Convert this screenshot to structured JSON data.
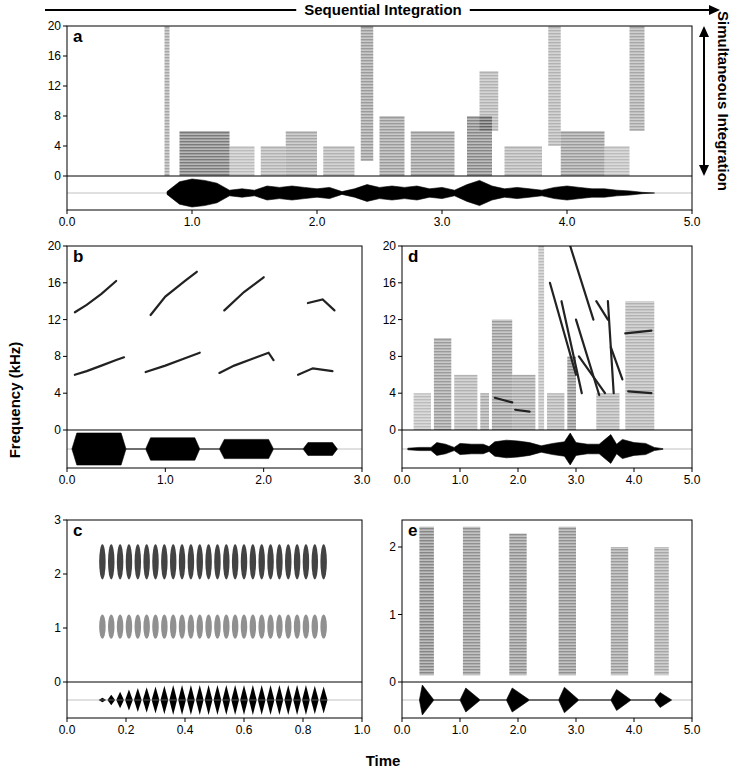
{
  "figure": {
    "sequential": "Sequential Integration",
    "simultaneous": "Simultaneous Integration",
    "y_label": "Frequency (kHz)",
    "x_label": "Time"
  },
  "chart_data": [
    {
      "type": "spectrogram",
      "label": "a",
      "xlim": [
        0,
        5
      ],
      "ylim": [
        0,
        20
      ],
      "xticks": [
        {
          "value": 0,
          "label": "0.0"
        },
        {
          "value": 1,
          "label": "1.0"
        },
        {
          "value": 2,
          "label": "2.0"
        },
        {
          "value": 3,
          "label": "3.0"
        },
        {
          "value": 4,
          "label": "4.0"
        },
        {
          "value": 5,
          "label": "5.0"
        }
      ],
      "yticks": [
        0,
        4,
        8,
        12,
        16,
        20
      ],
      "bands": [
        {
          "start": 0.78,
          "end": 0.82,
          "low": 0,
          "high": 20,
          "level": 0.4
        },
        {
          "start": 0.9,
          "end": 1.3,
          "low": 0,
          "high": 6,
          "level": 0.6
        },
        {
          "start": 1.3,
          "end": 1.5,
          "low": 0,
          "high": 4,
          "level": 0.3
        },
        {
          "start": 1.55,
          "end": 1.75,
          "low": 0,
          "high": 4,
          "level": 0.35
        },
        {
          "start": 1.75,
          "end": 2.0,
          "low": 0,
          "high": 6,
          "level": 0.4
        },
        {
          "start": 2.05,
          "end": 2.3,
          "low": 0,
          "high": 4,
          "level": 0.35
        },
        {
          "start": 2.35,
          "end": 2.45,
          "low": 2,
          "high": 20,
          "level": 0.45
        },
        {
          "start": 2.5,
          "end": 2.7,
          "low": 0,
          "high": 8,
          "level": 0.45
        },
        {
          "start": 2.75,
          "end": 3.1,
          "low": 0,
          "high": 6,
          "level": 0.45
        },
        {
          "start": 3.2,
          "end": 3.4,
          "low": 0,
          "high": 8,
          "level": 0.55
        },
        {
          "start": 3.3,
          "end": 3.45,
          "low": 6,
          "high": 14,
          "level": 0.35
        },
        {
          "start": 3.5,
          "end": 3.8,
          "low": 0,
          "high": 4,
          "level": 0.35
        },
        {
          "start": 3.85,
          "end": 3.95,
          "low": 4,
          "high": 20,
          "level": 0.35
        },
        {
          "start": 3.95,
          "end": 4.3,
          "low": 0,
          "high": 6,
          "level": 0.45
        },
        {
          "start": 4.3,
          "end": 4.5,
          "low": 0,
          "high": 4,
          "level": 0.3
        },
        {
          "start": 4.5,
          "end": 4.62,
          "low": 6,
          "high": 20,
          "level": 0.4
        }
      ],
      "tracks": [],
      "envelope": {
        "x": [
          0.8,
          0.9,
          1.0,
          1.1,
          1.2,
          1.3,
          1.4,
          1.5,
          1.6,
          1.7,
          1.8,
          1.9,
          2.0,
          2.1,
          2.2,
          2.3,
          2.4,
          2.5,
          2.6,
          2.7,
          2.8,
          2.9,
          3.0,
          3.1,
          3.2,
          3.3,
          3.4,
          3.5,
          3.6,
          3.7,
          3.8,
          3.9,
          4.0,
          4.1,
          4.2,
          4.3,
          4.4,
          4.5,
          4.6,
          4.7
        ],
        "values": [
          0.1,
          0.8,
          1.0,
          0.9,
          0.7,
          0.2,
          0.3,
          0.2,
          0.5,
          0.4,
          0.5,
          0.4,
          0.3,
          0.4,
          0.1,
          0.3,
          0.6,
          0.4,
          0.5,
          0.4,
          0.5,
          0.3,
          0.4,
          0.2,
          0.6,
          0.9,
          0.5,
          0.3,
          0.4,
          0.3,
          0.2,
          0.4,
          0.5,
          0.4,
          0.3,
          0.3,
          0.2,
          0.15,
          0.05,
          0
        ]
      },
      "amplitude_lim": [
        0,
        1
      ]
    },
    {
      "type": "spectrogram",
      "label": "b",
      "xlim": [
        0,
        3
      ],
      "ylim": [
        0,
        20
      ],
      "xticks": [
        {
          "value": 0,
          "label": "0.0"
        },
        {
          "value": 1,
          "label": "1.0"
        },
        {
          "value": 2,
          "label": "2.0"
        },
        {
          "value": 3,
          "label": "3.0"
        }
      ],
      "yticks": [
        0,
        4,
        8,
        12,
        16,
        20
      ],
      "bands": [],
      "tracks": [
        {
          "x": [
            0.08,
            0.2,
            0.35,
            0.5,
            0.58
          ],
          "values": [
            6.0,
            6.4,
            7.0,
            7.6,
            7.9
          ]
        },
        {
          "x": [
            0.08,
            0.2,
            0.35,
            0.5
          ],
          "values": [
            12.8,
            13.6,
            14.8,
            16.2
          ]
        },
        {
          "x": [
            0.8,
            1.0,
            1.2,
            1.35
          ],
          "values": [
            6.3,
            7.0,
            7.8,
            8.4
          ]
        },
        {
          "x": [
            0.85,
            1.0,
            1.2,
            1.32
          ],
          "values": [
            12.5,
            14.5,
            16.2,
            17.2
          ]
        },
        {
          "x": [
            1.55,
            1.7,
            1.9,
            2.05,
            2.1
          ],
          "values": [
            6.2,
            7.0,
            7.8,
            8.4,
            7.6
          ]
        },
        {
          "x": [
            1.6,
            1.8,
            2.0
          ],
          "values": [
            13.0,
            15.0,
            16.6
          ]
        },
        {
          "x": [
            2.35,
            2.5,
            2.7
          ],
          "values": [
            6.0,
            6.7,
            6.4
          ]
        },
        {
          "x": [
            2.45,
            2.6,
            2.72
          ],
          "values": [
            13.8,
            14.2,
            13.0
          ]
        }
      ],
      "envelope": {
        "x": [
          0.05,
          0.1,
          0.55,
          0.6,
          0.8,
          0.85,
          1.3,
          1.35,
          1.55,
          1.6,
          2.05,
          2.1,
          2.4,
          2.45,
          2.7,
          2.75
        ],
        "values": [
          0,
          1,
          1,
          0,
          0,
          0.7,
          0.7,
          0,
          0,
          0.6,
          0.6,
          0,
          0,
          0.4,
          0.4,
          0
        ]
      },
      "amplitude_lim": [
        0,
        1
      ]
    },
    {
      "type": "spectrogram",
      "label": "c",
      "xlim": [
        0,
        1
      ],
      "ylim": [
        0,
        3
      ],
      "xticks": [
        {
          "value": 0,
          "label": "0.0"
        },
        0.2,
        0.4,
        0.6,
        0.8,
        {
          "value": 1,
          "label": "1.0"
        }
      ],
      "yticks": [
        0,
        1,
        2,
        3
      ],
      "bands": [
        {
          "low": 0.8,
          "high": 1.25,
          "level": 0.5
        },
        {
          "low": 1.9,
          "high": 2.55,
          "level": 0.85
        }
      ],
      "tracks": [],
      "pulses": [
        0.12,
        0.15,
        0.18,
        0.21,
        0.24,
        0.27,
        0.3,
        0.33,
        0.36,
        0.39,
        0.42,
        0.45,
        0.48,
        0.51,
        0.54,
        0.57,
        0.6,
        0.63,
        0.66,
        0.69,
        0.72,
        0.75,
        0.78,
        0.81,
        0.84,
        0.87
      ],
      "pulse_amplitudes": [
        0.15,
        0.35,
        0.55,
        0.7,
        0.8,
        0.85,
        0.9,
        0.95,
        1,
        1,
        1,
        1,
        1,
        1,
        1,
        1,
        1,
        1,
        1,
        1,
        1,
        1,
        1,
        1,
        0.95,
        0.9
      ],
      "amplitude_lim": [
        0,
        1
      ]
    },
    {
      "type": "spectrogram",
      "label": "d",
      "xlim": [
        0,
        5
      ],
      "ylim": [
        0,
        20
      ],
      "xticks": [
        {
          "value": 0,
          "label": "0.0"
        },
        {
          "value": 1,
          "label": "1.0"
        },
        {
          "value": 2,
          "label": "2.0"
        },
        {
          "value": 3,
          "label": "3.0"
        },
        {
          "value": 4,
          "label": "4.0"
        },
        {
          "value": 5,
          "label": "5.0"
        }
      ],
      "yticks": [
        0,
        4,
        8,
        12,
        16,
        20
      ],
      "bands": [
        {
          "start": 0.2,
          "end": 0.5,
          "low": 0,
          "high": 4,
          "level": 0.3
        },
        {
          "start": 0.55,
          "end": 0.85,
          "low": 0,
          "high": 10,
          "level": 0.45
        },
        {
          "start": 0.9,
          "end": 1.3,
          "low": 0,
          "high": 6,
          "level": 0.35
        },
        {
          "start": 1.35,
          "end": 1.5,
          "low": 0,
          "high": 4,
          "level": 0.4
        },
        {
          "start": 1.55,
          "end": 1.9,
          "low": 0,
          "high": 12,
          "level": 0.45
        },
        {
          "start": 1.9,
          "end": 2.3,
          "low": 0,
          "high": 6,
          "level": 0.4
        },
        {
          "start": 2.35,
          "end": 2.45,
          "low": 0,
          "high": 20,
          "level": 0.3
        },
        {
          "start": 2.5,
          "end": 2.8,
          "low": 0,
          "high": 4,
          "level": 0.35
        },
        {
          "start": 2.85,
          "end": 3.0,
          "low": 0,
          "high": 8,
          "level": 0.5
        },
        {
          "start": 3.35,
          "end": 3.75,
          "low": 0,
          "high": 4,
          "level": 0.35
        },
        {
          "start": 3.85,
          "end": 4.35,
          "low": 0,
          "high": 14,
          "level": 0.35
        }
      ],
      "tracks": [
        {
          "x": [
            2.55,
            3.0
          ],
          "values": [
            16,
            6
          ]
        },
        {
          "x": [
            2.75,
            3.1
          ],
          "values": [
            14,
            4
          ]
        },
        {
          "x": [
            3.0,
            3.4
          ],
          "values": [
            12,
            3.8
          ]
        },
        {
          "x": [
            3.05,
            3.5
          ],
          "values": [
            8,
            4
          ]
        },
        {
          "x": [
            3.55,
            3.65
          ],
          "values": [
            14,
            4
          ]
        },
        {
          "x": [
            3.6,
            3.8
          ],
          "values": [
            9,
            5.5
          ]
        },
        {
          "x": [
            1.95,
            2.2
          ],
          "values": [
            2.2,
            2.0
          ]
        },
        {
          "x": [
            1.6,
            1.9
          ],
          "values": [
            3.5,
            3.0
          ]
        },
        {
          "x": [
            2.9,
            3.3
          ],
          "values": [
            20,
            12
          ]
        },
        {
          "x": [
            3.85,
            4.3
          ],
          "values": [
            10.5,
            10.8
          ]
        },
        {
          "x": [
            3.9,
            4.3
          ],
          "values": [
            4.2,
            4.0
          ]
        },
        {
          "x": [
            3.35,
            3.55
          ],
          "values": [
            14,
            12
          ]
        }
      ],
      "envelope": {
        "x": [
          0.1,
          0.3,
          0.5,
          0.6,
          0.75,
          0.9,
          1.0,
          1.2,
          1.4,
          1.5,
          1.6,
          1.8,
          2.0,
          2.2,
          2.4,
          2.6,
          2.8,
          2.9,
          3.0,
          3.2,
          3.4,
          3.6,
          3.7,
          3.8,
          4.0,
          4.2,
          4.35,
          4.5
        ],
        "values": [
          0.05,
          0.1,
          0.1,
          0.4,
          0.3,
          0.1,
          0.35,
          0.3,
          0.3,
          0.15,
          0.45,
          0.55,
          0.5,
          0.4,
          0.2,
          0.35,
          0.45,
          1.0,
          0.4,
          0.3,
          0.3,
          0.9,
          0.3,
          0.6,
          0.4,
          0.35,
          0.1,
          0.02
        ]
      },
      "amplitude_lim": [
        0,
        1
      ]
    },
    {
      "type": "spectrogram",
      "label": "e",
      "xlim": [
        0,
        5
      ],
      "ylim": [
        0,
        2.4
      ],
      "xticks": [
        {
          "value": 0,
          "label": "0.0"
        },
        {
          "value": 1,
          "label": "1.0"
        },
        {
          "value": 2,
          "label": "2.0"
        },
        {
          "value": 3,
          "label": "3.0"
        },
        {
          "value": 4,
          "label": "4.0"
        },
        {
          "value": 5,
          "label": "5.0"
        }
      ],
      "yticks": [
        0,
        1,
        2
      ],
      "bands": [
        {
          "start": 0.3,
          "end": 0.55,
          "low": 0.1,
          "high": 2.3,
          "level": 0.55
        },
        {
          "start": 1.05,
          "end": 1.35,
          "low": 0.1,
          "high": 2.3,
          "level": 0.5
        },
        {
          "start": 1.85,
          "end": 2.15,
          "low": 0.1,
          "high": 2.2,
          "level": 0.5
        },
        {
          "start": 2.7,
          "end": 3.0,
          "low": 0.1,
          "high": 2.3,
          "level": 0.5
        },
        {
          "start": 3.6,
          "end": 3.9,
          "low": 0.1,
          "high": 2.0,
          "level": 0.45
        },
        {
          "start": 4.35,
          "end": 4.6,
          "low": 0.1,
          "high": 2.0,
          "level": 0.4
        }
      ],
      "tracks": [],
      "envelope": {
        "x": [
          0.3,
          0.35,
          0.55,
          1.0,
          1.1,
          1.35,
          1.8,
          1.9,
          2.2,
          2.7,
          2.8,
          3.05,
          3.6,
          3.7,
          3.95,
          4.35,
          4.45,
          4.65
        ],
        "values": [
          0,
          1.0,
          0,
          0,
          0.8,
          0,
          0,
          0.8,
          0,
          0,
          0.85,
          0,
          0,
          0.7,
          0,
          0,
          0.5,
          0
        ]
      },
      "amplitude_lim": [
        0,
        1
      ]
    }
  ]
}
